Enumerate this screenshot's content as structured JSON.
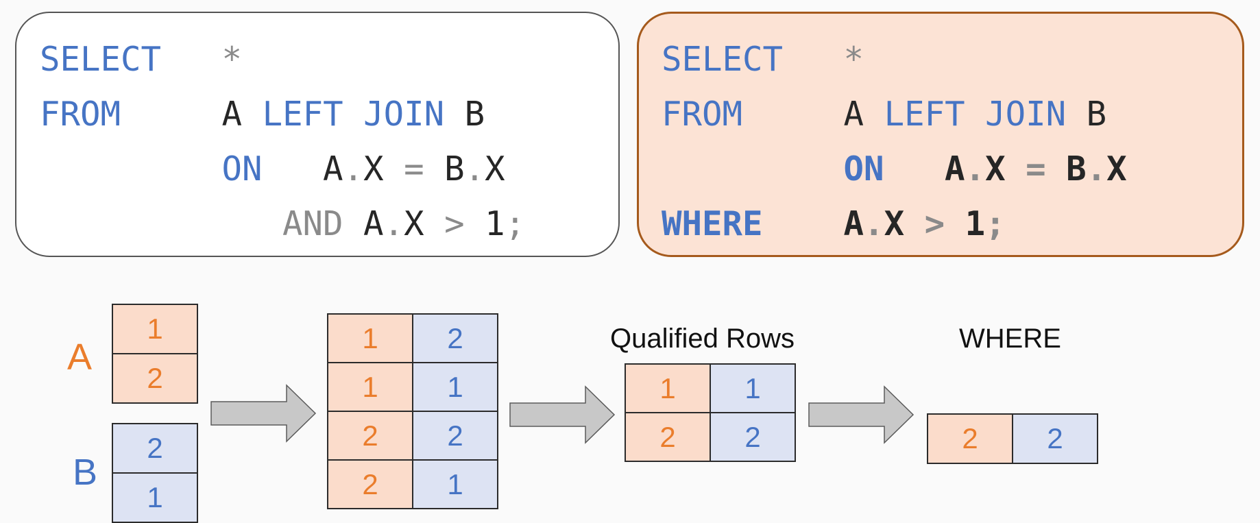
{
  "left_query": {
    "line1": {
      "kw": "SELECT",
      "pad": "   ",
      "rest": "*"
    },
    "line2": {
      "kw": "FROM",
      "pad": "     ",
      "a": "A",
      "join": "LEFT JOIN",
      "b": "B"
    },
    "line3": {
      "indent": "         ",
      "on": "ON",
      "pad": "   ",
      "lhs": "A",
      "dot1": ".",
      "x1": "X",
      "eq": "=",
      "rhs": "B",
      "dot2": ".",
      "x2": "X"
    },
    "line4": {
      "indent": "            ",
      "and": "AND",
      "lhs": "A",
      "dot": ".",
      "x": "X",
      "gt": ">",
      "one": "1",
      "semi": ";"
    }
  },
  "right_query": {
    "line1": {
      "kw": "SELECT",
      "pad": "   ",
      "rest": "*"
    },
    "line2": {
      "kw": "FROM",
      "pad": "     ",
      "a": "A",
      "join": "LEFT JOIN",
      "b": "B"
    },
    "line3": {
      "indent": "         ",
      "on": "ON",
      "pad": "   ",
      "lhs": "A",
      "dot1": ".",
      "x1": "X",
      "eq": "=",
      "rhs": "B",
      "dot2": ".",
      "x2": "X"
    },
    "line4": {
      "kw": "WHERE",
      "pad": "    ",
      "lhs": "A",
      "dot": ".",
      "x": "X",
      "gt": ">",
      "one": "1",
      "semi": ";"
    }
  },
  "diagram": {
    "table_a_label": "A",
    "table_a": [
      "1",
      "2"
    ],
    "table_b_label": "B",
    "table_b": [
      "2",
      "1"
    ],
    "joined": [
      [
        "1",
        "2"
      ],
      [
        "1",
        "1"
      ],
      [
        "2",
        "2"
      ],
      [
        "2",
        "1"
      ]
    ],
    "qualified_label": "Qualified Rows",
    "qualified": [
      [
        "1",
        "1"
      ],
      [
        "2",
        "2"
      ]
    ],
    "where_label": "WHERE",
    "where_result": [
      [
        "2",
        "2"
      ]
    ]
  },
  "colors": {
    "table_a_fill": "#fbdccb",
    "table_a_text": "#ea7d2c",
    "table_b_fill": "#dde3f3",
    "table_b_text": "#4674c4",
    "keyword": "#4674c4",
    "right_panel_fill": "#fce3d5",
    "right_panel_border": "#a55a1c",
    "arrow_fill": "#c8c8c8"
  }
}
